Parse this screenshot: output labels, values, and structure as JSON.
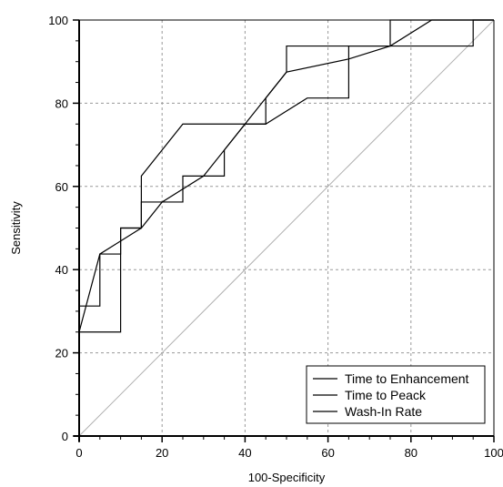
{
  "chart_data": {
    "type": "line",
    "xlabel": "100-Specificity",
    "ylabel": "Sensitivity",
    "xlim": [
      0,
      100
    ],
    "ylim": [
      0,
      100
    ],
    "xticks": [
      0,
      20,
      40,
      60,
      80,
      100
    ],
    "yticks": [
      0,
      20,
      40,
      60,
      80,
      100
    ],
    "grid": true,
    "legend_position": "bottom-right",
    "reference_line": {
      "x": [
        0,
        100
      ],
      "y": [
        0,
        100
      ],
      "color": "#b0b0b0"
    },
    "series": [
      {
        "name": "Time to Enhancement",
        "color": "#000000",
        "x": [
          0,
          0,
          10,
          10,
          15,
          15,
          25,
          45,
          45,
          50,
          50,
          75,
          75,
          85,
          100
        ],
        "y": [
          0,
          25,
          25,
          50,
          50,
          62.5,
          75,
          75,
          81.25,
          87.5,
          93.75,
          93.75,
          100,
          100,
          100
        ]
      },
      {
        "name": "Time to Peack",
        "color": "#000000",
        "x": [
          0,
          0,
          5,
          5,
          10,
          10,
          15,
          15,
          25,
          25,
          35,
          35,
          40,
          45,
          55,
          65,
          65,
          95,
          95,
          100
        ],
        "y": [
          0,
          31.25,
          31.25,
          43.75,
          43.75,
          50,
          50,
          56.25,
          56.25,
          62.5,
          62.5,
          68.75,
          75,
          75,
          81.25,
          81.25,
          93.75,
          93.75,
          100,
          100
        ]
      },
      {
        "name": "Wash-In Rate",
        "color": "#000000",
        "x": [
          0,
          0,
          5,
          15,
          20,
          30,
          40,
          50,
          65,
          75,
          85,
          100
        ],
        "y": [
          0,
          25,
          43.75,
          50,
          56.25,
          62.5,
          75,
          87.5,
          90.63,
          93.75,
          100,
          100
        ]
      }
    ]
  }
}
